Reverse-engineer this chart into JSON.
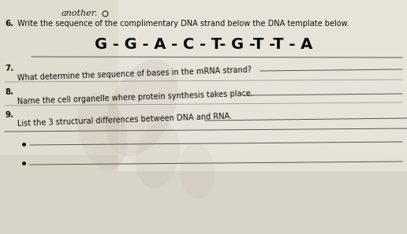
{
  "bg_color_top": "#ddd8cc",
  "bg_color_bottom": "#e8e4da",
  "top_handwritten": "another.",
  "q6_label": "6.",
  "q6_text": "Write the sequence of the complimentary DNA strand below the DNA template below.",
  "dna_sequence": "G - G - A - C - T- G -T -T - A",
  "q7_label": "7.",
  "q7_text": "What determine the sequence of bases in the mRNA strand?",
  "q8_label": "8.",
  "q8_text": "Name the cell organelle where protein synthesis takes place.",
  "q9_label": "9.",
  "q9_text": "List the 3 structural differences between DNA and RNA.",
  "line_color": "#555555",
  "text_color": "#111111",
  "watermark_color": "#b0a898",
  "page_bg": "#ccc8bc"
}
